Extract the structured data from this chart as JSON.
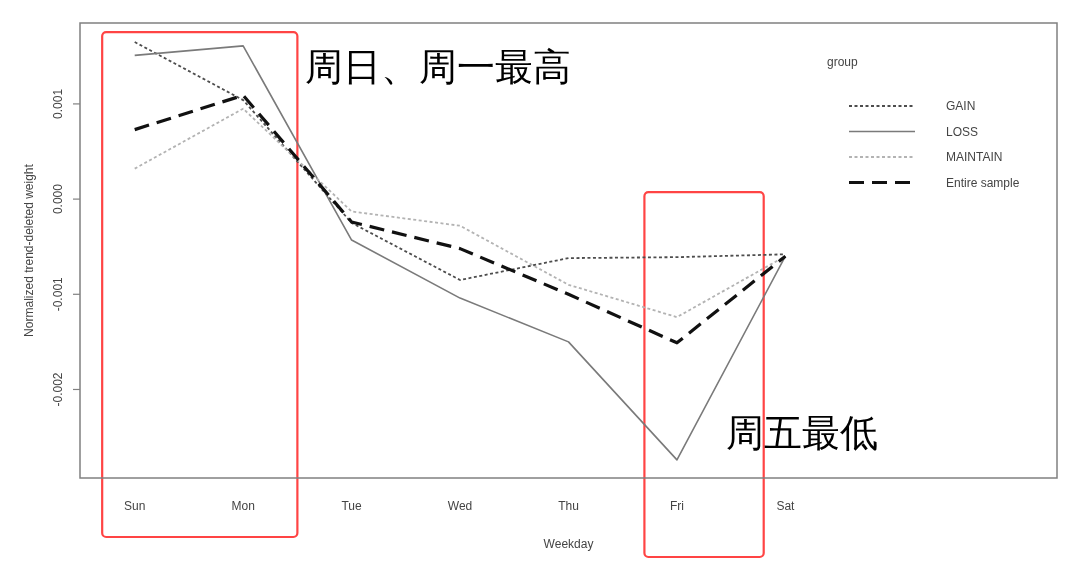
{
  "chart_data": {
    "type": "line",
    "xlabel": "Weekday",
    "ylabel": "Normalized trend-deleted weight",
    "legend_title": "group",
    "legend": "top right",
    "categories": [
      "Sun",
      "Mon",
      "Tue",
      "Wed",
      "Thu",
      "Fri",
      "Sat"
    ],
    "ylim": [
      -0.00293,
      0.00185
    ],
    "yticks": [
      -0.002,
      -0.001,
      {
        "value": 0,
        "label": "0.000"
      },
      0.001
    ],
    "series": [
      {
        "name": "GAIN",
        "color": "#4d4d4d",
        "line_style": "dotted",
        "values": [
          0.00165,
          0.00104,
          -0.00025,
          -0.00085,
          -0.00062,
          -0.00061,
          -0.00058
        ]
      },
      {
        "name": "LOSS",
        "color": "#7a7a7a",
        "line_style": "solid",
        "values": [
          0.00151,
          0.00161,
          -0.00043,
          -0.00104,
          -0.0015,
          -0.00274,
          -0.0006
        ]
      },
      {
        "name": "MAINTAIN",
        "color": "#b3b3b3",
        "line_style": "dotted",
        "values": [
          0.00032,
          0.00095,
          -0.00013,
          -0.00028,
          -0.0009,
          -0.00124,
          -0.0006
        ]
      },
      {
        "name": "Entire sample",
        "color": "#111111",
        "line_style": "dashed",
        "values": [
          0.00073,
          0.00109,
          -0.00024,
          -0.00052,
          -0.001,
          -0.00151,
          -0.0006
        ]
      }
    ],
    "annotations": [
      {
        "text": "周日、周一最高",
        "x": "Mon",
        "y": 0.00161
      },
      {
        "text": "周五最低",
        "x": "Fri",
        "y": -0.00274
      }
    ]
  }
}
